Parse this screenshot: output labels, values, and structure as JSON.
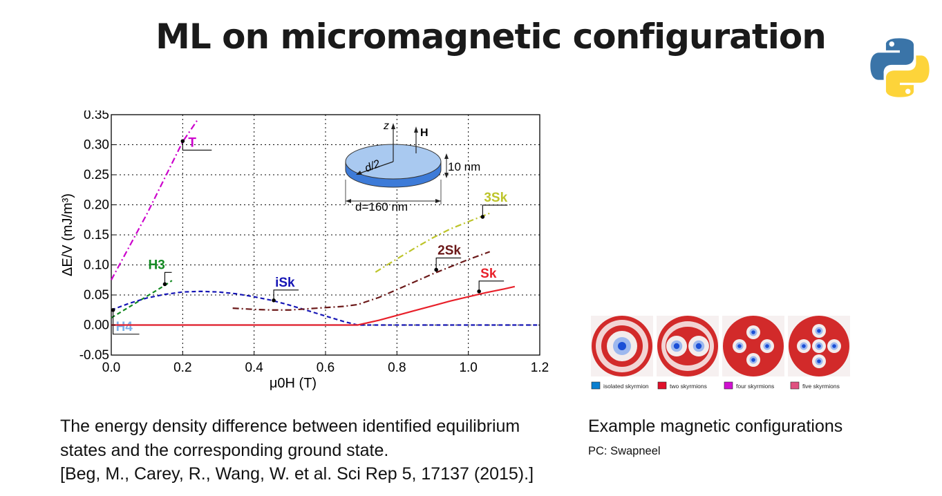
{
  "slide": {
    "title": "ML on micromagnetic configuration"
  },
  "logo": {
    "icon": "python-logo-icon",
    "colors": {
      "blue": "#3a74a8",
      "yellow": "#fdd43a"
    }
  },
  "chart_data": {
    "type": "line",
    "xlabel": "μ0H (T)",
    "ylabel": "ΔE/V (mJ/m³)",
    "xlim": [
      0.0,
      1.2
    ],
    "ylim": [
      -0.05,
      0.35
    ],
    "x_ticks": [
      "0.0",
      "0.2",
      "0.4",
      "0.6",
      "0.8",
      "1.0",
      "1.2"
    ],
    "y_ticks": [
      "-0.05",
      "0.00",
      "0.05",
      "0.10",
      "0.15",
      "0.20",
      "0.25",
      "0.30",
      "0.35"
    ],
    "grid": true,
    "series": [
      {
        "name": "T",
        "color": "#cc00cc",
        "dash": "dashdot",
        "x": [
          0.0,
          0.05,
          0.1,
          0.15,
          0.2,
          0.24
        ],
        "y": [
          0.075,
          0.13,
          0.185,
          0.245,
          0.305,
          0.34
        ],
        "marker": {
          "x": 0.2,
          "y": 0.306
        }
      },
      {
        "name": "H3",
        "color": "#138a22",
        "dash": "dashed",
        "x": [
          0.0,
          0.05,
          0.1,
          0.15,
          0.17
        ],
        "y": [
          0.012,
          0.03,
          0.048,
          0.066,
          0.074
        ],
        "marker": {
          "x": 0.15,
          "y": 0.068
        }
      },
      {
        "name": "iSk",
        "color": "#1515b5",
        "dash": "dashed",
        "x": [
          0.0,
          0.05,
          0.1,
          0.15,
          0.2,
          0.25,
          0.3,
          0.35,
          0.4,
          0.45,
          0.5,
          0.55,
          0.6,
          0.65,
          0.69,
          0.8,
          1.0,
          1.2
        ],
        "y": [
          0.025,
          0.036,
          0.045,
          0.051,
          0.055,
          0.056,
          0.055,
          0.052,
          0.047,
          0.041,
          0.033,
          0.024,
          0.015,
          0.006,
          0.0,
          0.0,
          0.0,
          0.0
        ],
        "marker": {
          "x": 0.455,
          "y": 0.041
        }
      },
      {
        "name": "H4",
        "color": "#7fb2e8",
        "dash": "solid",
        "x": [
          0.0,
          0.69
        ],
        "y": [
          0.0,
          0.0
        ],
        "marker": {
          "x": 0.005,
          "y": 0.025
        }
      },
      {
        "name": "Sk",
        "color": "#e8202a",
        "dash": "solid",
        "x": [
          0.0,
          0.69,
          0.75,
          0.8,
          0.85,
          0.9,
          0.95,
          1.0,
          1.05,
          1.1,
          1.13
        ],
        "y": [
          0.0,
          0.0,
          0.008,
          0.016,
          0.024,
          0.032,
          0.04,
          0.047,
          0.054,
          0.06,
          0.064
        ],
        "marker": {
          "x": 1.03,
          "y": 0.056
        }
      },
      {
        "name": "2Sk",
        "color": "#6b1818",
        "dash": "dashdot",
        "x": [
          0.34,
          0.4,
          0.45,
          0.5,
          0.55,
          0.6,
          0.65,
          0.69,
          0.75,
          0.8,
          0.85,
          0.9,
          0.95,
          1.0,
          1.06
        ],
        "y": [
          0.028,
          0.026,
          0.025,
          0.025,
          0.027,
          0.029,
          0.031,
          0.034,
          0.046,
          0.059,
          0.072,
          0.085,
          0.097,
          0.109,
          0.122
        ],
        "marker": {
          "x": 0.91,
          "y": 0.092
        }
      },
      {
        "name": "3Sk",
        "color": "#bdc42a",
        "dash": "dashdot",
        "x": [
          0.74,
          0.8,
          0.85,
          0.9,
          0.95,
          1.0,
          1.06
        ],
        "y": [
          0.088,
          0.11,
          0.128,
          0.145,
          0.16,
          0.172,
          0.186
        ],
        "marker": {
          "x": 1.04,
          "y": 0.18
        }
      }
    ],
    "inset": {
      "axis_label": "z",
      "field_label": "H",
      "radius_label": "d/2",
      "thickness_label": "10 nm",
      "diameter_label": "d=160 nm",
      "colors": {
        "top": "#a9c9f0",
        "side": "#3d7bd8"
      }
    }
  },
  "configurations": {
    "legend": [
      {
        "label": "isolated skyrmion",
        "color": "#0a7fd0",
        "skyrmions": 1
      },
      {
        "label": "two skyrmions",
        "color": "#e0102a",
        "skyrmions": 2
      },
      {
        "label": "four skyrmions",
        "color": "#d010d0",
        "skyrmions": 4
      },
      {
        "label": "five skyrmions",
        "color": "#e05080",
        "skyrmions": 5
      }
    ]
  },
  "captions": {
    "left_line1": "The energy density difference between identified equilibrium",
    "left_line2": "states and the corresponding ground state.",
    "left_line3": "[Beg, M., Carey, R., Wang, W. et al. Sci Rep 5, 17137 (2015).]",
    "right_title": "Example magnetic configurations",
    "right_credit": "PC: Swapneel"
  }
}
